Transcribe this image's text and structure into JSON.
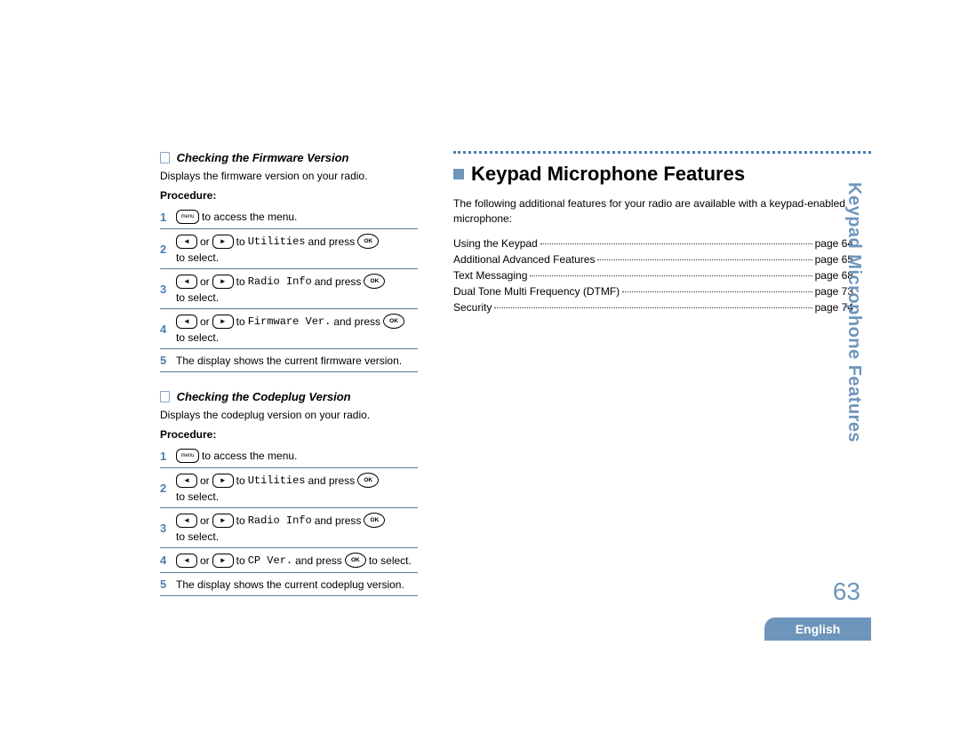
{
  "colors": {
    "accent": "#4a7fb0",
    "tab": "#6e95bb",
    "rule": "#5a7a9c"
  },
  "left": {
    "section1": {
      "heading": "Checking the Firmware Version",
      "desc": "Displays the firmware version on your radio.",
      "proc_label": "Procedure:",
      "steps": [
        {
          "n": "1",
          "pre": "",
          "icon1": "menu",
          "mid": " to access the menu."
        },
        {
          "n": "2",
          "icon1": "left",
          "or": " or ",
          "icon2": "right",
          "to": " to ",
          "target": "Utilities",
          "post": " and press ",
          "icon3": "ok",
          "tail": " to select."
        },
        {
          "n": "3",
          "icon1": "left",
          "or": " or ",
          "icon2": "right",
          "to": " to ",
          "target": "Radio Info",
          "post": " and press ",
          "icon3": "ok",
          "tail": " to select."
        },
        {
          "n": "4",
          "icon1": "left",
          "or": " or ",
          "icon2": "right",
          "to": " to ",
          "target": "Firmware Ver.",
          "post": " and press ",
          "icon3": "ok",
          "tail": " to select."
        },
        {
          "n": "5",
          "text": "The display shows the current firmware version."
        }
      ]
    },
    "section2": {
      "heading": "Checking the Codeplug Version",
      "desc": "Displays the codeplug version on your radio.",
      "proc_label": "Procedure:",
      "steps": [
        {
          "n": "1",
          "icon1": "menu",
          "mid": " to access the menu."
        },
        {
          "n": "2",
          "icon1": "left",
          "or": " or ",
          "icon2": "right",
          "to": " to ",
          "target": "Utilities",
          "post": " and press ",
          "icon3": "ok",
          "tail": " to select."
        },
        {
          "n": "3",
          "icon1": "left",
          "or": " or ",
          "icon2": "right",
          "to": " to ",
          "target": "Radio Info",
          "post": " and press ",
          "icon3": "ok",
          "tail": " to select."
        },
        {
          "n": "4",
          "icon1": "left",
          "or": " or ",
          "icon2": "right",
          "to": " to ",
          "target": "CP Ver.",
          "post": " and press ",
          "icon3": "ok",
          "tail": " to select."
        },
        {
          "n": "5",
          "text": "The display shows the current codeplug version."
        }
      ]
    }
  },
  "right": {
    "heading": "Keypad Microphone Features",
    "intro": "The following additional features for your radio are available with a keypad-enabled microphone:",
    "toc": [
      {
        "label": "Using the Keypad",
        "page": "page 64"
      },
      {
        "label": "Additional Advanced Features",
        "page": "page 65"
      },
      {
        "label": "Text Messaging",
        "page": "page 68"
      },
      {
        "label": "Dual Tone Multi Frequency (DTMF)",
        "page": "page 73"
      },
      {
        "label": "Security",
        "page": "page 74"
      }
    ]
  },
  "side_tab": "Keypad Microphone Features",
  "page_number": "63",
  "language": "English",
  "icon_labels": {
    "menu": "menu",
    "ok": "OK"
  }
}
